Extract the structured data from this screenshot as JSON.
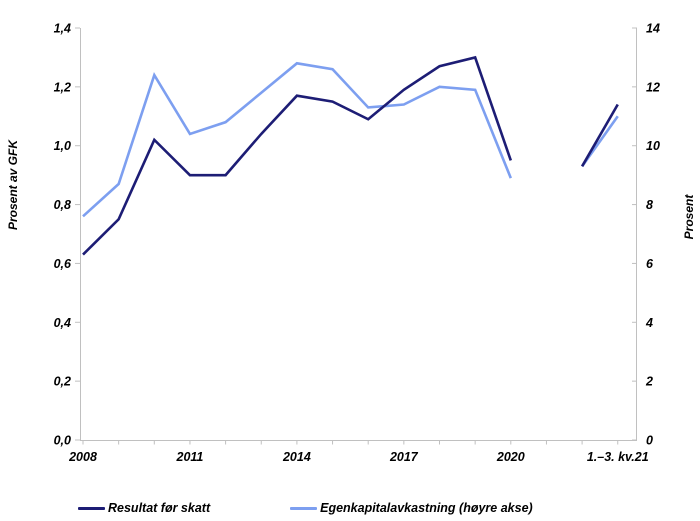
{
  "chart_data": {
    "type": "line",
    "title": "",
    "grid": false,
    "legend_position": "bottom",
    "axis_color": "#c0c0c0",
    "text_color": "#000000",
    "left_axis": {
      "label": "Prosent av GFK",
      "min": 0,
      "max": 1.4,
      "ticks": [
        {
          "value": 0.0,
          "label": "0,0"
        },
        {
          "value": 0.2,
          "label": "0,2"
        },
        {
          "value": 0.4,
          "label": "0,4"
        },
        {
          "value": 0.6,
          "label": "0,6"
        },
        {
          "value": 0.8,
          "label": "0,8"
        },
        {
          "value": 1.0,
          "label": "1,0"
        },
        {
          "value": 1.2,
          "label": "1,2"
        },
        {
          "value": 1.4,
          "label": "1,4"
        }
      ]
    },
    "right_axis": {
      "label": "Prosent",
      "min": 0,
      "max": 14,
      "ticks": [
        {
          "value": 0,
          "label": "0"
        },
        {
          "value": 2,
          "label": "2"
        },
        {
          "value": 4,
          "label": "4"
        },
        {
          "value": 6,
          "label": "6"
        },
        {
          "value": 8,
          "label": "8"
        },
        {
          "value": 10,
          "label": "10"
        },
        {
          "value": 12,
          "label": "12"
        },
        {
          "value": 14,
          "label": "14"
        }
      ]
    },
    "x_axis": {
      "labels": [
        {
          "slot": 2008,
          "text": "2008"
        },
        {
          "slot": 2011,
          "text": "2011"
        },
        {
          "slot": 2014,
          "text": "2014"
        },
        {
          "slot": 2017,
          "text": "2017"
        },
        {
          "slot": 2020,
          "text": "2020"
        },
        {
          "slot": 2023,
          "text": "1.–3. kv.21"
        }
      ]
    },
    "series": [
      {
        "name": "Resultat før skatt",
        "axis": "left",
        "color": "#1d1d75",
        "years": [
          2008,
          2009,
          2010,
          2011,
          2012,
          2013,
          2014,
          2015,
          2016,
          2017,
          2018,
          2019,
          2020
        ],
        "values": [
          0.63,
          0.75,
          1.02,
          0.9,
          0.9,
          1.04,
          1.17,
          1.15,
          1.09,
          1.19,
          1.27,
          1.3,
          0.95
        ],
        "quarterly_values": [
          0.93,
          1.14
        ]
      },
      {
        "name": "Egenkapitalavkastning (høyre akse)",
        "axis": "right",
        "color": "#7d9ff0",
        "years": [
          2008,
          2009,
          2010,
          2011,
          2012,
          2013,
          2014,
          2015,
          2016,
          2017,
          2018,
          2019,
          2020
        ],
        "values": [
          7.6,
          8.7,
          12.4,
          10.4,
          10.8,
          11.8,
          12.8,
          12.6,
          11.3,
          11.4,
          12.0,
          11.9,
          8.9
        ],
        "quarterly_values": [
          9.3,
          11.0
        ]
      }
    ]
  }
}
